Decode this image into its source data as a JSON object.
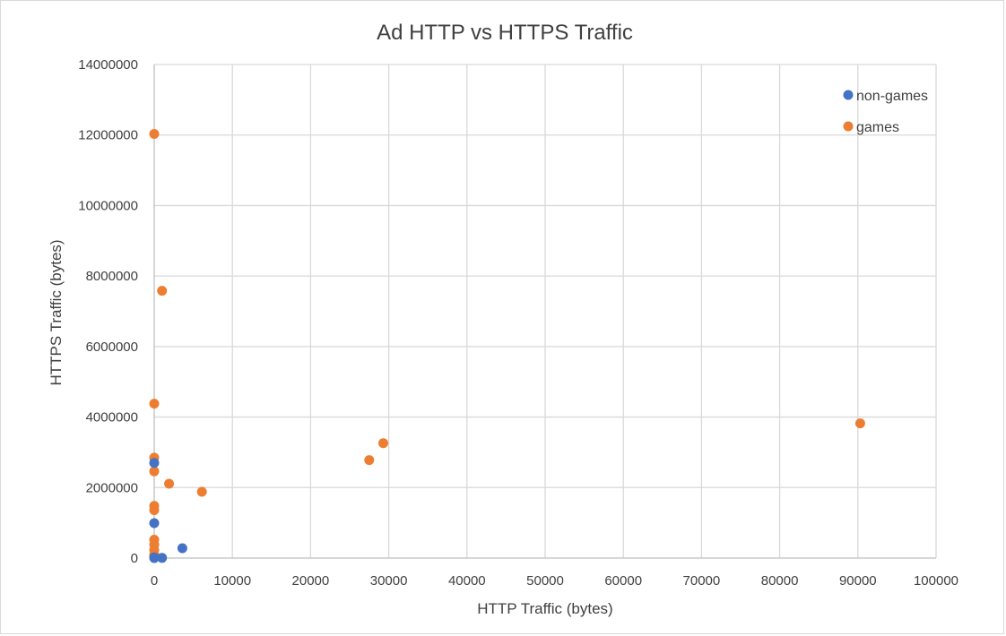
{
  "chart_data": {
    "type": "scatter",
    "title": "Ad HTTP vs HTTPS Traffic",
    "xlabel": "HTTP Traffic (bytes)",
    "ylabel": "HTTPS Traffic (bytes)",
    "xlim": [
      0,
      100000
    ],
    "ylim": [
      0,
      14000000
    ],
    "xticks": [
      "0",
      "10000",
      "20000",
      "30000",
      "40000",
      "50000",
      "60000",
      "70000",
      "80000",
      "90000",
      "100000"
    ],
    "yticks": [
      "0",
      "2000000",
      "4000000",
      "6000000",
      "8000000",
      "10000000",
      "12000000",
      "14000000"
    ],
    "grid": true,
    "legend_position": "top-right",
    "series": [
      {
        "name": "games",
        "color": "#ED7D31",
        "points": [
          {
            "x": 0,
            "y": 12030000
          },
          {
            "x": 1000,
            "y": 7580000
          },
          {
            "x": 0,
            "y": 4380000
          },
          {
            "x": 0,
            "y": 2850000
          },
          {
            "x": 0,
            "y": 2460000
          },
          {
            "x": 1900,
            "y": 2110000
          },
          {
            "x": 6100,
            "y": 1880000
          },
          {
            "x": 27500,
            "y": 2780000
          },
          {
            "x": 29300,
            "y": 3260000
          },
          {
            "x": 90300,
            "y": 3820000
          },
          {
            "x": 0,
            "y": 1480000
          },
          {
            "x": 0,
            "y": 1360000
          },
          {
            "x": 0,
            "y": 520000
          },
          {
            "x": 0,
            "y": 380000
          },
          {
            "x": 0,
            "y": 230000
          },
          {
            "x": 0,
            "y": 100000
          },
          {
            "x": 0,
            "y": 30000
          }
        ]
      },
      {
        "name": "non-games",
        "color": "#4472C4",
        "points": [
          {
            "x": 0,
            "y": 2700000
          },
          {
            "x": 0,
            "y": 990000
          },
          {
            "x": 3600,
            "y": 280000
          },
          {
            "x": 1000,
            "y": 5000
          },
          {
            "x": 0,
            "y": 20000
          },
          {
            "x": 0,
            "y": 0
          }
        ]
      }
    ]
  }
}
